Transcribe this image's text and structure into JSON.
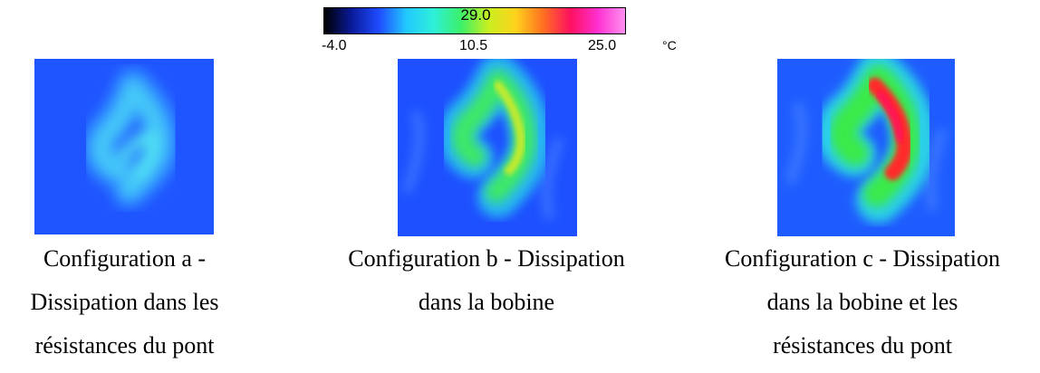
{
  "colorbar": {
    "max_label": "29.0",
    "tick_min": "-4.0",
    "tick_mid": "10.5",
    "tick_max": "25.0",
    "unit": "°C",
    "gradient_stops": [
      "#000000",
      "#0a1a9a",
      "#1f4cff",
      "#22c8ff",
      "#2ef0d8",
      "#3cf06a",
      "#c8f020",
      "#ffd21c",
      "#ff7020",
      "#ff1060",
      "#ff30d0",
      "#ff90f0"
    ]
  },
  "panels": [
    {
      "id": "a",
      "caption_lines": [
        "Configuration a -",
        "Dissipation dans les",
        "résistances du pont"
      ],
      "hotspot_level": "low",
      "colors": {
        "background": "#1f55ff",
        "mid": "#33a8ff",
        "hot": "#4fe8f8"
      }
    },
    {
      "id": "b",
      "caption_lines": [
        "Configuration b - Dissipation",
        "dans la bobine"
      ],
      "hotspot_level": "medium",
      "colors": {
        "background": "#1e50ff",
        "mid": "#2ad2e8",
        "warm": "#40ec5a",
        "hot": "#cfe82a"
      }
    },
    {
      "id": "c",
      "caption_lines": [
        "Configuration c - Dissipation",
        "dans la bobine et les",
        "résistances du pont"
      ],
      "hotspot_level": "high",
      "colors": {
        "background": "#1f5cff",
        "mid": "#2ed6e0",
        "warm": "#38ea48",
        "hot": "#ff2430",
        "core": "#ff1060"
      }
    }
  ]
}
